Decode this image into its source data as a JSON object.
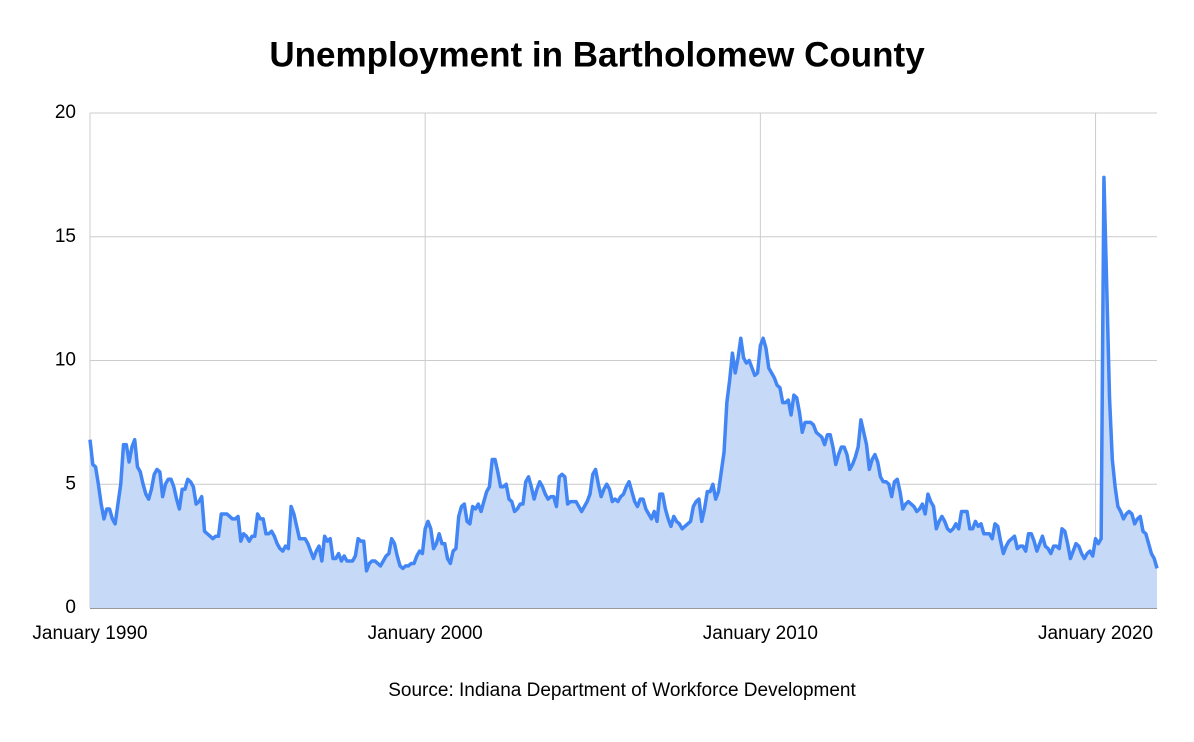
{
  "chart_data": {
    "type": "area",
    "title": "Unemployment in Bartholomew County",
    "source": "Source: Indiana Department of Workforce Development",
    "color": "#4285f4",
    "fill": "#c6d9f7",
    "grid": true,
    "xlim": [
      "1990-01",
      "2021-11"
    ],
    "xticks": [
      {
        "value": "1990-01",
        "label": "January 1990"
      },
      {
        "value": "2000-01",
        "label": "January 2000"
      },
      {
        "value": "2010-01",
        "label": "January 2010"
      },
      {
        "value": "2020-01",
        "label": "January 2020"
      }
    ],
    "ylim": [
      0,
      20
    ],
    "yticks": [
      0,
      5,
      10,
      15,
      20
    ],
    "x": [
      "1990-01",
      "1990-02",
      "1990-03",
      "1990-04",
      "1990-05",
      "1990-06",
      "1990-07",
      "1990-08",
      "1990-09",
      "1990-10",
      "1990-11",
      "1990-12",
      "1991-01",
      "1991-02",
      "1991-03",
      "1991-04",
      "1991-05",
      "1991-06",
      "1991-07",
      "1991-08",
      "1991-09",
      "1991-10",
      "1991-11",
      "1991-12",
      "1992-01",
      "1992-02",
      "1992-03",
      "1992-04",
      "1992-05",
      "1992-06",
      "1992-07",
      "1992-08",
      "1992-09",
      "1992-10",
      "1992-11",
      "1992-12",
      "1993-01",
      "1993-02",
      "1993-03",
      "1993-04",
      "1993-05",
      "1993-06",
      "1993-07",
      "1993-08",
      "1993-09",
      "1993-10",
      "1993-11",
      "1993-12",
      "1994-01",
      "1994-02",
      "1994-03",
      "1994-04",
      "1994-05",
      "1994-06",
      "1994-07",
      "1994-08",
      "1994-09",
      "1994-10",
      "1994-11",
      "1994-12",
      "1995-01",
      "1995-02",
      "1995-03",
      "1995-04",
      "1995-05",
      "1995-06",
      "1995-07",
      "1995-08",
      "1995-09",
      "1995-10",
      "1995-11",
      "1995-12",
      "1996-01",
      "1996-02",
      "1996-03",
      "1996-04",
      "1996-05",
      "1996-06",
      "1996-07",
      "1996-08",
      "1996-09",
      "1996-10",
      "1996-11",
      "1996-12",
      "1997-01",
      "1997-02",
      "1997-03",
      "1997-04",
      "1997-05",
      "1997-06",
      "1997-07",
      "1997-08",
      "1997-09",
      "1997-10",
      "1997-11",
      "1997-12",
      "1998-01",
      "1998-02",
      "1998-03",
      "1998-04",
      "1998-05",
      "1998-06",
      "1998-07",
      "1998-08",
      "1998-09",
      "1998-10",
      "1998-11",
      "1998-12",
      "1999-01",
      "1999-02",
      "1999-03",
      "1999-04",
      "1999-05",
      "1999-06",
      "1999-07",
      "1999-08",
      "1999-09",
      "1999-10",
      "1999-11",
      "1999-12",
      "2000-01",
      "2000-02",
      "2000-03",
      "2000-04",
      "2000-05",
      "2000-06",
      "2000-07",
      "2000-08",
      "2000-09",
      "2000-10",
      "2000-11",
      "2000-12",
      "2001-01",
      "2001-02",
      "2001-03",
      "2001-04",
      "2001-05",
      "2001-06",
      "2001-07",
      "2001-08",
      "2001-09",
      "2001-10",
      "2001-11",
      "2001-12",
      "2002-01",
      "2002-02",
      "2002-03",
      "2002-04",
      "2002-05",
      "2002-06",
      "2002-07",
      "2002-08",
      "2002-09",
      "2002-10",
      "2002-11",
      "2002-12",
      "2003-01",
      "2003-02",
      "2003-03",
      "2003-04",
      "2003-05",
      "2003-06",
      "2003-07",
      "2003-08",
      "2003-09",
      "2003-10",
      "2003-11",
      "2003-12",
      "2004-01",
      "2004-02",
      "2004-03",
      "2004-04",
      "2004-05",
      "2004-06",
      "2004-07",
      "2004-08",
      "2004-09",
      "2004-10",
      "2004-11",
      "2004-12",
      "2005-01",
      "2005-02",
      "2005-03",
      "2005-04",
      "2005-05",
      "2005-06",
      "2005-07",
      "2005-08",
      "2005-09",
      "2005-10",
      "2005-11",
      "2005-12",
      "2006-01",
      "2006-02",
      "2006-03",
      "2006-04",
      "2006-05",
      "2006-06",
      "2006-07",
      "2006-08",
      "2006-09",
      "2006-10",
      "2006-11",
      "2006-12",
      "2007-01",
      "2007-02",
      "2007-03",
      "2007-04",
      "2007-05",
      "2007-06",
      "2007-07",
      "2007-08",
      "2007-09",
      "2007-10",
      "2007-11",
      "2007-12",
      "2008-01",
      "2008-02",
      "2008-03",
      "2008-04",
      "2008-05",
      "2008-06",
      "2008-07",
      "2008-08",
      "2008-09",
      "2008-10",
      "2008-11",
      "2008-12",
      "2009-01",
      "2009-02",
      "2009-03",
      "2009-04",
      "2009-05",
      "2009-06",
      "2009-07",
      "2009-08",
      "2009-09",
      "2009-10",
      "2009-11",
      "2009-12",
      "2010-01",
      "2010-02",
      "2010-03",
      "2010-04",
      "2010-05",
      "2010-06",
      "2010-07",
      "2010-08",
      "2010-09",
      "2010-10",
      "2010-11",
      "2010-12",
      "2011-01",
      "2011-02",
      "2011-03",
      "2011-04",
      "2011-05",
      "2011-06",
      "2011-07",
      "2011-08",
      "2011-09",
      "2011-10",
      "2011-11",
      "2011-12",
      "2012-01",
      "2012-02",
      "2012-03",
      "2012-04",
      "2012-05",
      "2012-06",
      "2012-07",
      "2012-08",
      "2012-09",
      "2012-10",
      "2012-11",
      "2012-12",
      "2013-01",
      "2013-02",
      "2013-03",
      "2013-04",
      "2013-05",
      "2013-06",
      "2013-07",
      "2013-08",
      "2013-09",
      "2013-10",
      "2013-11",
      "2013-12",
      "2014-01",
      "2014-02",
      "2014-03",
      "2014-04",
      "2014-05",
      "2014-06",
      "2014-07",
      "2014-08",
      "2014-09",
      "2014-10",
      "2014-11",
      "2014-12",
      "2015-01",
      "2015-02",
      "2015-03",
      "2015-04",
      "2015-05",
      "2015-06",
      "2015-07",
      "2015-08",
      "2015-09",
      "2015-10",
      "2015-11",
      "2015-12",
      "2016-01",
      "2016-02",
      "2016-03",
      "2016-04",
      "2016-05",
      "2016-06",
      "2016-07",
      "2016-08",
      "2016-09",
      "2016-10",
      "2016-11",
      "2016-12",
      "2017-01",
      "2017-02",
      "2017-03",
      "2017-04",
      "2017-05",
      "2017-06",
      "2017-07",
      "2017-08",
      "2017-09",
      "2017-10",
      "2017-11",
      "2017-12",
      "2018-01",
      "2018-02",
      "2018-03",
      "2018-04",
      "2018-05",
      "2018-06",
      "2018-07",
      "2018-08",
      "2018-09",
      "2018-10",
      "2018-11",
      "2018-12",
      "2019-01",
      "2019-02",
      "2019-03",
      "2019-04",
      "2019-05",
      "2019-06",
      "2019-07",
      "2019-08",
      "2019-09",
      "2019-10",
      "2019-11",
      "2019-12",
      "2020-01",
      "2020-02",
      "2020-03",
      "2020-04",
      "2020-05",
      "2020-06",
      "2020-07",
      "2020-08",
      "2020-09",
      "2020-10",
      "2020-11",
      "2020-12",
      "2021-01",
      "2021-02",
      "2021-03",
      "2021-04",
      "2021-05",
      "2021-06",
      "2021-07",
      "2021-08",
      "2021-09",
      "2021-10",
      "2021-11"
    ],
    "values": [
      6.8,
      5.8,
      5.7,
      5.0,
      4.2,
      3.6,
      4.0,
      4.0,
      3.6,
      3.4,
      4.2,
      5.0,
      6.6,
      6.6,
      5.9,
      6.5,
      6.8,
      5.7,
      5.5,
      5.0,
      4.6,
      4.4,
      4.8,
      5.4,
      5.6,
      5.5,
      4.5,
      5.0,
      5.2,
      5.2,
      4.9,
      4.4,
      4.0,
      4.8,
      4.8,
      5.2,
      5.1,
      4.9,
      4.2,
      4.3,
      4.5,
      3.1,
      3.0,
      2.9,
      2.8,
      2.9,
      2.9,
      3.8,
      3.8,
      3.8,
      3.7,
      3.6,
      3.6,
      3.7,
      2.7,
      3.0,
      2.9,
      2.7,
      2.9,
      2.9,
      3.8,
      3.6,
      3.6,
      3.0,
      3.0,
      3.1,
      2.9,
      2.6,
      2.4,
      2.3,
      2.5,
      2.4,
      4.1,
      3.8,
      3.3,
      2.8,
      2.8,
      2.8,
      2.6,
      2.3,
      2.0,
      2.3,
      2.5,
      1.9,
      2.9,
      2.7,
      2.8,
      2.0,
      2.0,
      2.2,
      1.9,
      2.1,
      1.9,
      1.9,
      1.9,
      2.1,
      2.8,
      2.7,
      2.7,
      1.5,
      1.8,
      1.9,
      1.9,
      1.8,
      1.7,
      1.9,
      2.1,
      2.2,
      2.8,
      2.6,
      2.1,
      1.7,
      1.6,
      1.7,
      1.7,
      1.8,
      1.8,
      2.1,
      2.3,
      2.2,
      3.2,
      3.5,
      3.2,
      2.4,
      2.6,
      3.0,
      2.6,
      2.6,
      2.0,
      1.8,
      2.3,
      2.4,
      3.7,
      4.1,
      4.2,
      3.5,
      3.4,
      4.1,
      4.0,
      4.2,
      3.9,
      4.3,
      4.7,
      4.9,
      6.0,
      6.0,
      5.5,
      4.9,
      4.9,
      5.0,
      4.4,
      4.3,
      3.9,
      4.0,
      4.2,
      4.2,
      5.1,
      5.3,
      4.9,
      4.4,
      4.8,
      5.1,
      4.9,
      4.6,
      4.4,
      4.5,
      4.5,
      4.1,
      5.3,
      5.4,
      5.3,
      4.2,
      4.3,
      4.3,
      4.3,
      4.1,
      3.9,
      4.1,
      4.3,
      4.6,
      5.4,
      5.6,
      5.0,
      4.5,
      4.8,
      5.0,
      4.8,
      4.3,
      4.4,
      4.3,
      4.5,
      4.6,
      4.9,
      5.1,
      4.7,
      4.3,
      4.1,
      4.4,
      4.4,
      4.0,
      3.8,
      3.6,
      3.9,
      3.5,
      4.6,
      4.6,
      4.0,
      3.6,
      3.3,
      3.7,
      3.5,
      3.4,
      3.2,
      3.3,
      3.4,
      3.5,
      4.1,
      4.3,
      4.4,
      3.5,
      4.0,
      4.7,
      4.7,
      5.0,
      4.4,
      4.7,
      5.5,
      6.3,
      8.3,
      9.2,
      10.3,
      9.5,
      10.1,
      10.9,
      10.1,
      9.9,
      10.0,
      9.7,
      9.4,
      9.5,
      10.6,
      10.9,
      10.5,
      9.7,
      9.5,
      9.3,
      9.0,
      8.9,
      8.3,
      8.3,
      8.4,
      7.8,
      8.6,
      8.5,
      7.9,
      7.1,
      7.5,
      7.5,
      7.5,
      7.4,
      7.1,
      7.0,
      6.9,
      6.6,
      7.0,
      7.0,
      6.5,
      5.8,
      6.2,
      6.5,
      6.5,
      6.2,
      5.6,
      5.8,
      6.1,
      6.5,
      7.6,
      7.1,
      6.6,
      5.6,
      6.0,
      6.2,
      5.9,
      5.3,
      5.1,
      5.1,
      5.0,
      4.5,
      5.1,
      5.2,
      4.7,
      4.0,
      4.2,
      4.3,
      4.2,
      4.1,
      3.9,
      4.0,
      4.2,
      3.8,
      4.6,
      4.3,
      4.1,
      3.2,
      3.5,
      3.7,
      3.5,
      3.2,
      3.1,
      3.2,
      3.4,
      3.2,
      3.9,
      3.9,
      3.9,
      3.2,
      3.2,
      3.5,
      3.3,
      3.4,
      3.0,
      3.0,
      3.0,
      2.8,
      3.4,
      3.3,
      2.7,
      2.2,
      2.5,
      2.7,
      2.8,
      2.9,
      2.4,
      2.5,
      2.5,
      2.3,
      3.0,
      3.0,
      2.7,
      2.3,
      2.6,
      2.9,
      2.5,
      2.4,
      2.2,
      2.5,
      2.5,
      2.4,
      3.2,
      3.1,
      2.6,
      2.0,
      2.3,
      2.6,
      2.5,
      2.2,
      2.0,
      2.2,
      2.3,
      2.1,
      2.8,
      2.6,
      2.8,
      17.4,
      13.0,
      8.5,
      6.0,
      4.9,
      4.1,
      3.9,
      3.6,
      3.8,
      3.9,
      3.8,
      3.4,
      3.6,
      3.7,
      3.1,
      3.0,
      2.6,
      2.2,
      2.0,
      1.6
    ]
  }
}
